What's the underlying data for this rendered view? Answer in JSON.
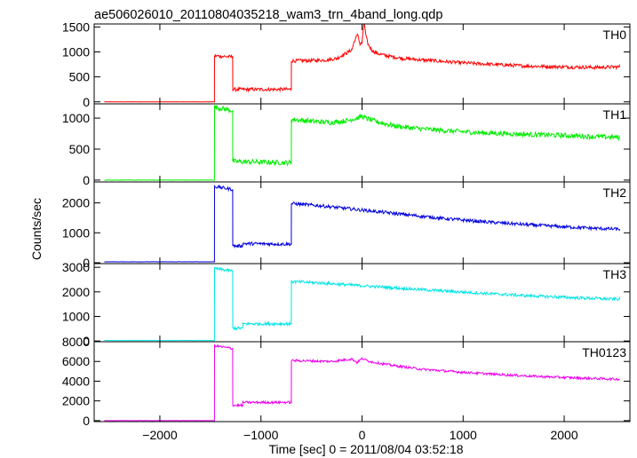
{
  "title": "ae506026010_20110804035218_wam3_trn_4band_long.qdp",
  "xlabel": "Time [sec] 0 = 2011/08/04 03:52:18",
  "ylabel": "Counts/sec",
  "chart_data": [
    {
      "type": "line",
      "label": "TH0",
      "color": "#ff0000",
      "xlim": [
        -2650,
        2650
      ],
      "ylim": [
        -40,
        1560
      ],
      "yticks": [
        0,
        500,
        1000,
        1500
      ],
      "xticks": [
        -2000,
        -1000,
        0,
        1000,
        2000
      ],
      "x": [
        -2550,
        -1460,
        -1459,
        -1280,
        -1279,
        -700,
        -699,
        -450,
        -350,
        -250,
        -200,
        -150,
        -100,
        -70,
        -40,
        -20,
        0,
        20,
        40,
        60,
        100,
        150,
        250,
        400,
        600,
        800,
        1000,
        1300,
        1600,
        2000,
        2300,
        2550
      ],
      "y": [
        0,
        0,
        920,
        900,
        250,
        250,
        820,
        830,
        840,
        870,
        930,
        980,
        1050,
        1250,
        1350,
        1150,
        1180,
        1600,
        1300,
        1150,
        1030,
        970,
        920,
        870,
        840,
        810,
        780,
        750,
        720,
        700,
        690,
        700
      ],
      "noise": 35
    },
    {
      "type": "line",
      "label": "TH1",
      "color": "#00ee00",
      "xlim": [
        -2650,
        2650
      ],
      "ylim": [
        -30,
        1230
      ],
      "yticks": [
        0,
        500,
        1000
      ],
      "xticks": [
        -2000,
        -1000,
        0,
        1000,
        2000
      ],
      "x": [
        -2550,
        -1460,
        -1459,
        -1280,
        -1279,
        -700,
        -699,
        -500,
        -300,
        -150,
        -50,
        0,
        50,
        150,
        300,
        500,
        800,
        1200,
        1600,
        2000,
        2300,
        2550
      ],
      "y": [
        0,
        0,
        1180,
        1120,
        300,
        280,
        980,
        950,
        930,
        960,
        1000,
        1030,
        990,
        940,
        880,
        840,
        800,
        760,
        740,
        720,
        700,
        690
      ],
      "noise": 40
    },
    {
      "type": "line",
      "label": "TH2",
      "color": "#0000dd",
      "xlim": [
        -2650,
        2650
      ],
      "ylim": [
        -30,
        2700
      ],
      "yticks": [
        0,
        1000,
        2000
      ],
      "xticks": [
        -2000,
        -1000,
        0,
        1000,
        2000
      ],
      "x": [
        -2550,
        -1460,
        -1459,
        -1280,
        -1279,
        -1180,
        -1179,
        -700,
        -699,
        -400,
        0,
        400,
        800,
        1200,
        1600,
        2000,
        2300,
        2550
      ],
      "y": [
        30,
        30,
        2550,
        2450,
        560,
        560,
        640,
        620,
        1980,
        1900,
        1760,
        1620,
        1480,
        1370,
        1280,
        1200,
        1150,
        1120
      ],
      "noise": 55
    },
    {
      "type": "line",
      "label": "TH3",
      "color": "#00e5e5",
      "xlim": [
        -2650,
        2650
      ],
      "ylim": [
        -30,
        3150
      ],
      "yticks": [
        0,
        1000,
        2000,
        3000
      ],
      "xticks": [
        -2000,
        -1000,
        0,
        1000,
        2000
      ],
      "x": [
        -2550,
        -1460,
        -1459,
        -1280,
        -1279,
        -1180,
        -1179,
        -700,
        -699,
        -400,
        0,
        400,
        800,
        1200,
        1600,
        2000,
        2300,
        2550
      ],
      "y": [
        20,
        20,
        2950,
        2850,
        520,
        520,
        700,
        700,
        2420,
        2360,
        2250,
        2140,
        2040,
        1940,
        1850,
        1780,
        1730,
        1700
      ],
      "noise": 60
    },
    {
      "type": "line",
      "label": "TH0123",
      "color": "#ee00ee",
      "xlim": [
        -2650,
        2650
      ],
      "ylim": [
        -100,
        8000
      ],
      "yticks": [
        0,
        2000,
        4000,
        6000,
        8000
      ],
      "xticks": [
        -2000,
        -1000,
        0,
        1000,
        2000
      ],
      "x": [
        -2550,
        -1460,
        -1459,
        -1280,
        -1279,
        -1180,
        -1179,
        -700,
        -699,
        -300,
        -100,
        -50,
        0,
        50,
        100,
        300,
        600,
        1000,
        1400,
        1800,
        2200,
        2550
      ],
      "y": [
        0,
        0,
        7600,
        7300,
        1550,
        1550,
        1850,
        1850,
        6100,
        6000,
        6250,
        5900,
        6300,
        6100,
        5950,
        5600,
        5200,
        4900,
        4650,
        4450,
        4300,
        4200
      ],
      "noise": 120
    }
  ]
}
